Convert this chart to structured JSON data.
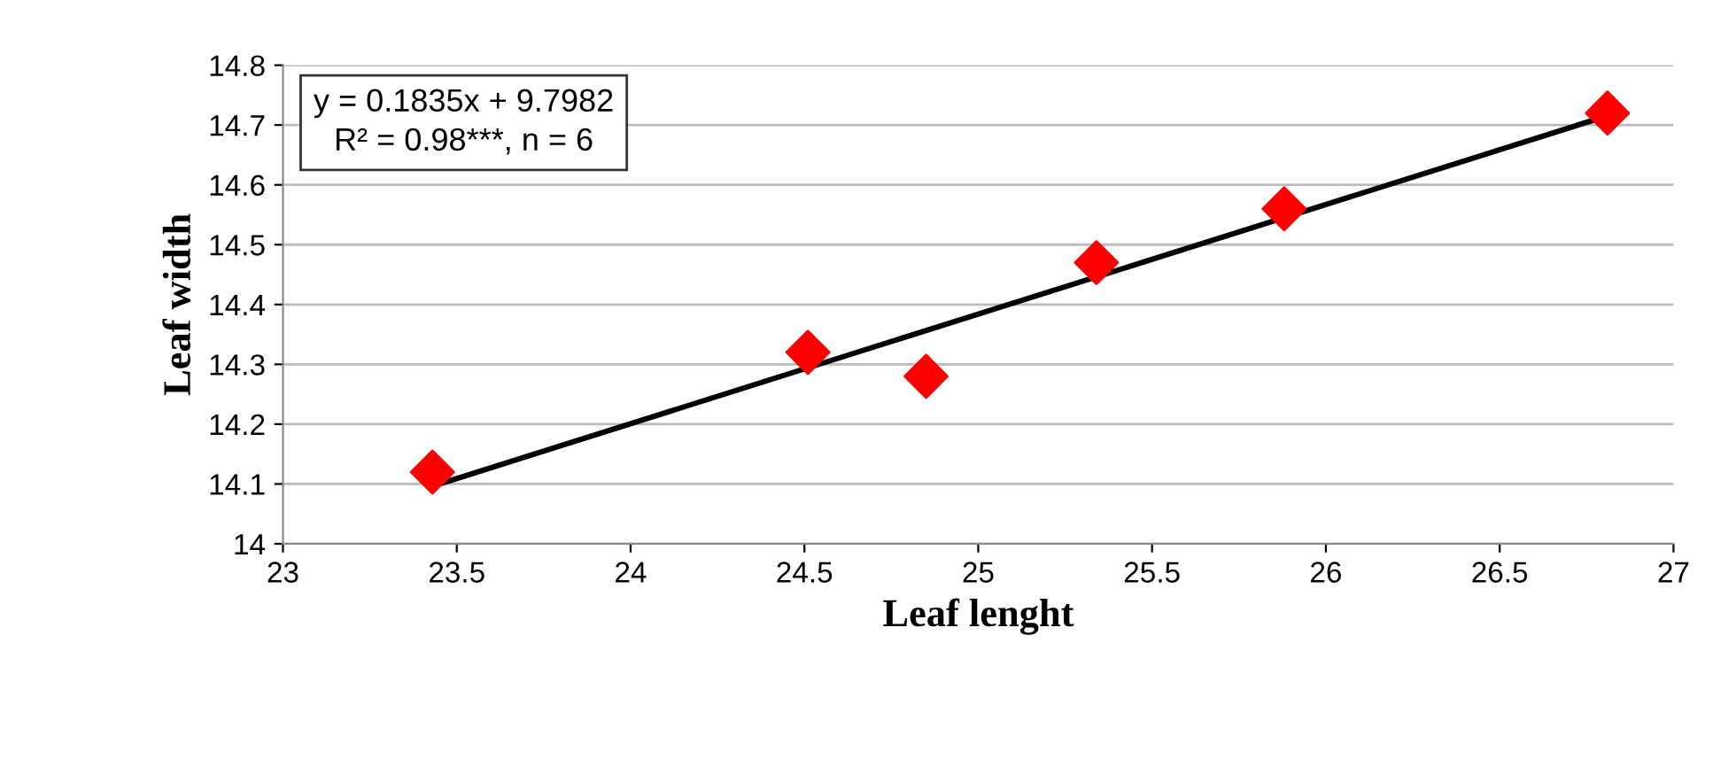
{
  "chart_data": {
    "type": "scatter",
    "xlabel": "Leaf lenght",
    "ylabel": "Leaf width",
    "series": [
      {
        "color": "#ff0000",
        "marker": "diamond",
        "x": [
          23.43,
          24.51,
          24.85,
          25.34,
          25.88,
          26.81
        ],
        "values": [
          14.12,
          14.32,
          14.28,
          14.47,
          14.56,
          14.72
        ]
      },
      {
        "type": "line",
        "color": "#000000",
        "marker": "none",
        "line_style": "solid",
        "x": [
          23.45,
          26.78
        ],
        "values": [
          14.1,
          14.71
        ]
      }
    ],
    "annotations": [
      "y = 0.1835x + 9.7982",
      "R² = 0.98***, n = 6"
    ],
    "xlim": [
      23,
      27
    ],
    "xticks": [
      23,
      23.5,
      24,
      24.5,
      25,
      25.5,
      26,
      26.5,
      27
    ],
    "ylim": [
      14,
      14.8
    ],
    "yticks": [
      14,
      14.1,
      14.2,
      14.3,
      14.4,
      14.5,
      14.6,
      14.7,
      14.8
    ],
    "grid": "y",
    "legend": false
  }
}
